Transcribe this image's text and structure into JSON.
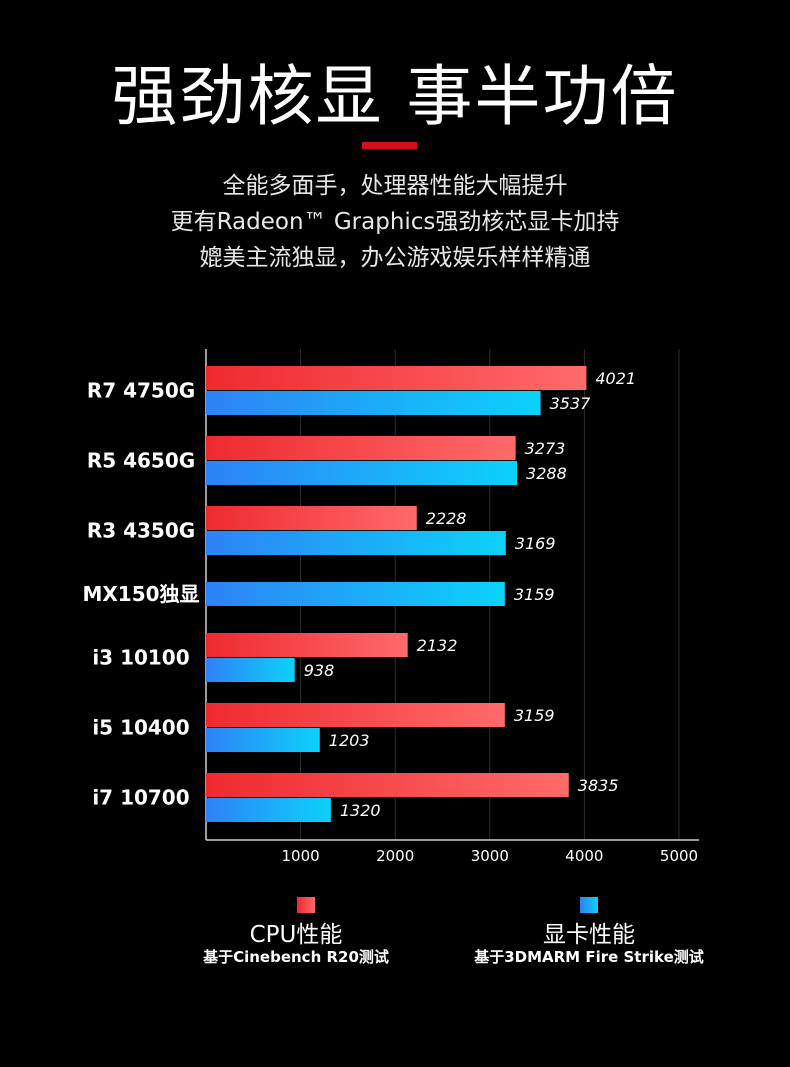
{
  "header": {
    "title": "强劲核显 事半功倍",
    "lines": [
      "全能多面手，处理器性能大幅提升",
      "更有Radeon™ Graphics强劲核芯显卡加持",
      "媲美主流独显，办公游戏娱乐样样精通"
    ]
  },
  "chart_data": {
    "type": "bar",
    "orientation": "horizontal",
    "categories": [
      "R7 4750G",
      "R5 4650G",
      "R3 4350G",
      "MX150独显",
      "i3 10100",
      "i5 10400",
      "i7 10700"
    ],
    "series": [
      {
        "name": "CPU性能",
        "values": [
          4021,
          3273,
          2228,
          null,
          2132,
          3159,
          3835
        ],
        "color_from": "#ee2a30",
        "color_to": "#ff6a6a"
      },
      {
        "name": "显卡性能",
        "values": [
          3537,
          3288,
          3169,
          3159,
          938,
          1203,
          1320
        ],
        "color_from": "#2e82f5",
        "color_to": "#0cd2fb"
      }
    ],
    "x_ticks": [
      "1000",
      "2000",
      "3000",
      "4000",
      "5000"
    ],
    "xlim": [
      0,
      5000
    ],
    "grid": true
  },
  "legend": {
    "cpu": {
      "label": "CPU性能",
      "note": "基于Cinebench R20测试"
    },
    "gpu": {
      "label": "显卡性能",
      "note": "基于3DMARM Fire Strike测试"
    }
  }
}
